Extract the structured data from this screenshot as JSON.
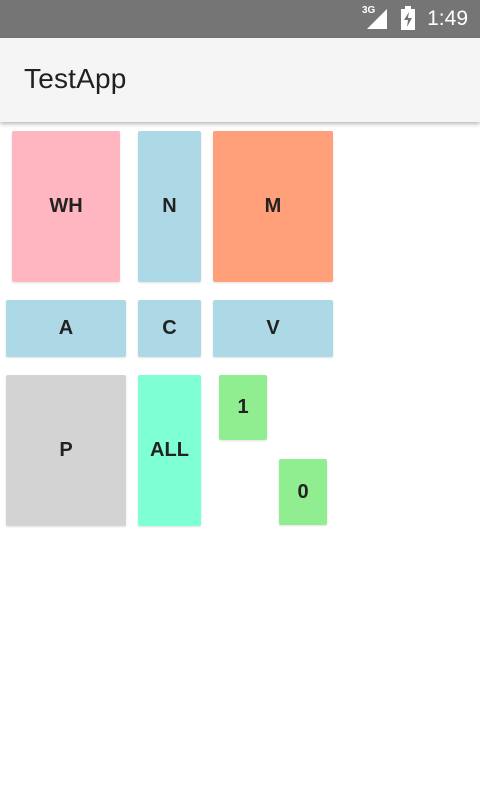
{
  "status_bar": {
    "network_type": "3G",
    "time": "1:49",
    "icons": [
      "signal-icon",
      "battery-charging-icon"
    ]
  },
  "app_bar": {
    "title": "TestApp"
  },
  "buttons": {
    "wh": {
      "label": "WH",
      "color": "#ffb6c1"
    },
    "n": {
      "label": "N",
      "color": "#add8e6"
    },
    "m": {
      "label": "M",
      "color": "#ffa07a"
    },
    "a": {
      "label": "A",
      "color": "#add8e6"
    },
    "c": {
      "label": "C",
      "color": "#add8e6"
    },
    "v": {
      "label": "V",
      "color": "#add8e6"
    },
    "p": {
      "label": "P",
      "color": "#d3d3d3"
    },
    "all": {
      "label": "ALL",
      "color": "#7fffd4"
    },
    "one": {
      "label": "1",
      "color": "#90ee90"
    },
    "zero": {
      "label": "0",
      "color": "#90ee90"
    }
  },
  "colors": {
    "status_bar": "#757575",
    "app_bar": "#f5f5f5",
    "title_text": "#212121"
  }
}
